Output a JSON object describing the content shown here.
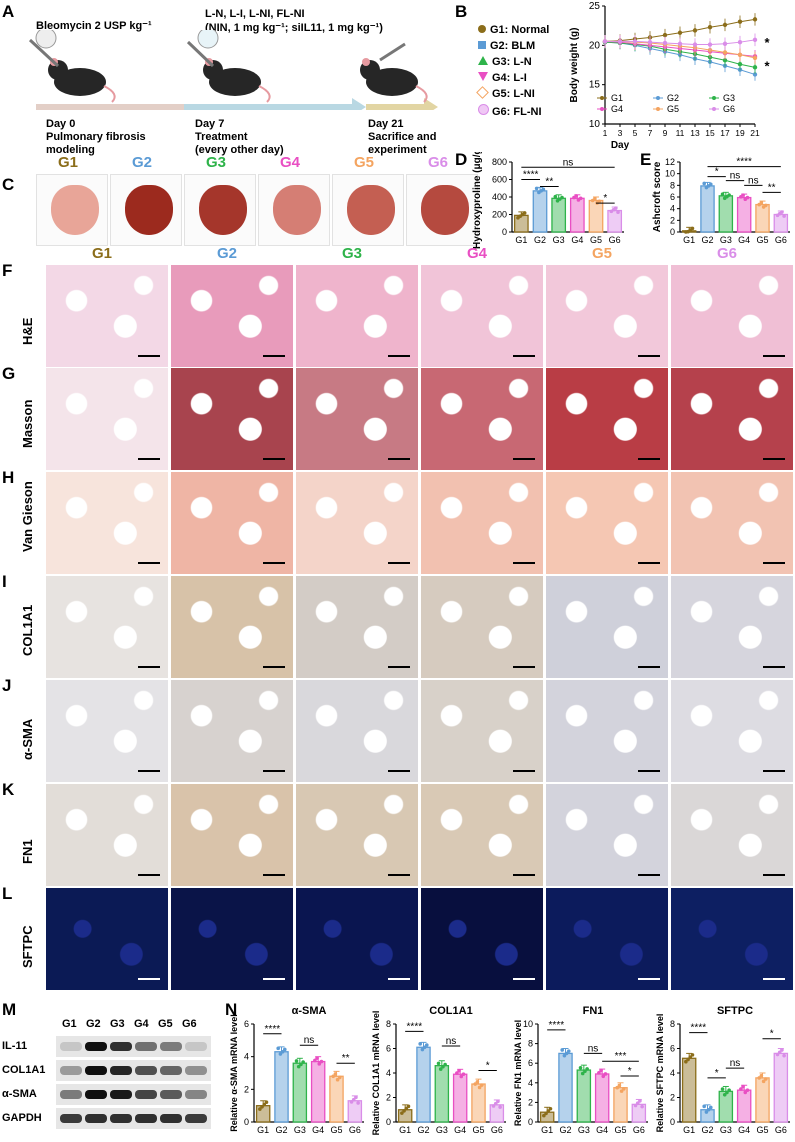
{
  "panels": {
    "A": "A",
    "B": "B",
    "C": "C",
    "D": "D",
    "E": "E",
    "F": "F",
    "G": "G",
    "H": "H",
    "I": "I",
    "J": "J",
    "K": "K",
    "L": "L",
    "M": "M",
    "N": "N"
  },
  "groups": [
    {
      "id": "G1",
      "color": "#8b6d1a"
    },
    {
      "id": "G2",
      "color": "#5b9bd5"
    },
    {
      "id": "G3",
      "color": "#2eb34a"
    },
    {
      "id": "G4",
      "color": "#e94fc3"
    },
    {
      "id": "G5",
      "color": "#f4a460"
    },
    {
      "id": "G6",
      "color": "#d98de8"
    }
  ],
  "schematic": {
    "bleomycin": "Bleomycin 2 USP kg⁻¹",
    "treatment_line1": "L-N, L-I, L-NI, FL-NI",
    "treatment_line2": "(NIN, 1 mg kg⁻¹; siIL11, 1 mg kg⁻¹)",
    "day0": "Day 0",
    "day0_desc1": "Pulmonary fibrosis",
    "day0_desc2": "modeling",
    "day7": "Day 7",
    "day7_desc1": "Treatment",
    "day7_desc2": "(every other day)",
    "day21": "Day 21",
    "day21_desc1": "Sacrifice and",
    "day21_desc2": "experiment"
  },
  "legend_B": [
    "G1: Normal",
    "G2: BLM",
    "G3: L-N",
    "G4: L-I",
    "G5: L-NI",
    "G6: FL-NI"
  ],
  "histology_rows": [
    "H&E",
    "Masson",
    "Van Gieson",
    "COL1A1",
    "α-SMA",
    "FN1",
    "SFTPC"
  ],
  "western": {
    "bands": [
      "IL-11",
      "COL1A1",
      "α-SMA",
      "GAPDH"
    ],
    "lanes": [
      "G1",
      "G2",
      "G3",
      "G4",
      "G5",
      "G6"
    ]
  },
  "chart_data": [
    {
      "id": "B",
      "type": "line",
      "title": "",
      "xlabel": "Day",
      "ylabel": "Body weight (g)",
      "x": [
        1,
        3,
        5,
        7,
        9,
        11,
        13,
        15,
        17,
        19,
        21
      ],
      "xticks": [
        "1",
        "3",
        "5",
        "7",
        "9",
        "11",
        "13",
        "15",
        "17",
        "19",
        "21"
      ],
      "ylim": [
        10,
        25
      ],
      "yticks": [
        10,
        15,
        20,
        25
      ],
      "series": [
        {
          "name": "G1",
          "values": [
            20.5,
            20.6,
            20.8,
            21.0,
            21.3,
            21.6,
            21.9,
            22.3,
            22.6,
            23.0,
            23.3
          ]
        },
        {
          "name": "G2",
          "values": [
            20.4,
            20.3,
            20.0,
            19.6,
            19.2,
            18.8,
            18.3,
            17.9,
            17.4,
            16.9,
            16.3
          ]
        },
        {
          "name": "G3",
          "values": [
            20.4,
            20.3,
            20.1,
            19.9,
            19.5,
            19.2,
            18.9,
            18.5,
            18.1,
            17.6,
            17.2
          ]
        },
        {
          "name": "G4",
          "values": [
            20.5,
            20.4,
            20.2,
            20.0,
            19.8,
            19.6,
            19.4,
            19.2,
            19.0,
            18.8,
            18.6
          ]
        },
        {
          "name": "G5",
          "values": [
            20.5,
            20.5,
            20.4,
            20.3,
            20.1,
            19.9,
            19.7,
            19.4,
            19.1,
            18.8,
            18.4
          ]
        },
        {
          "name": "G6",
          "values": [
            20.5,
            20.5,
            20.5,
            20.4,
            20.3,
            20.2,
            20.1,
            20.1,
            20.2,
            20.4,
            20.7
          ]
        }
      ],
      "annotations": [
        "*",
        "*"
      ]
    },
    {
      "id": "D",
      "type": "bar",
      "title": "",
      "xlabel": "",
      "ylabel": "Hydroxyproline (μg/g)",
      "categories": [
        "G1",
        "G2",
        "G3",
        "G4",
        "G5",
        "G6"
      ],
      "values": [
        190,
        470,
        385,
        385,
        360,
        245
      ],
      "ylim": [
        0,
        800
      ],
      "yticks": [
        0,
        200,
        400,
        600,
        800
      ],
      "annotations": [
        "ns",
        "****",
        "**",
        "*"
      ]
    },
    {
      "id": "E",
      "type": "bar",
      "title": "",
      "xlabel": "",
      "ylabel": "Ashcroft score",
      "categories": [
        "G1",
        "G2",
        "G3",
        "G4",
        "G5",
        "G6"
      ],
      "values": [
        0.2,
        7.9,
        6.2,
        5.9,
        4.7,
        3.0
      ],
      "ylim": [
        0,
        12
      ],
      "yticks": [
        0,
        2,
        4,
        6,
        8,
        10,
        12
      ],
      "annotations": [
        "****",
        "*",
        "ns",
        "ns",
        "**"
      ]
    },
    {
      "id": "N1",
      "type": "bar",
      "title": "α-SMA",
      "xlabel": "",
      "ylabel": "Relative α-SMA mRNA level",
      "categories": [
        "G1",
        "G2",
        "G3",
        "G4",
        "G5",
        "G6"
      ],
      "values": [
        1.0,
        4.3,
        3.6,
        3.7,
        2.8,
        1.3
      ],
      "ylim": [
        0,
        6
      ],
      "yticks": [
        0,
        2,
        4,
        6
      ],
      "annotations": [
        "****",
        "ns",
        "**"
      ]
    },
    {
      "id": "N2",
      "type": "bar",
      "title": "COL1A1",
      "xlabel": "",
      "ylabel": "Relative COL1A1 mRNA level",
      "categories": [
        "G1",
        "G2",
        "G3",
        "G4",
        "G5",
        "G6"
      ],
      "values": [
        1.0,
        6.1,
        4.6,
        3.9,
        3.1,
        1.4
      ],
      "ylim": [
        0,
        8
      ],
      "yticks": [
        0,
        2,
        4,
        6,
        8
      ],
      "annotations": [
        "****",
        "ns",
        "*"
      ]
    },
    {
      "id": "N3",
      "type": "bar",
      "title": "FN1",
      "xlabel": "",
      "ylabel": "Relative FN1 mRNA level",
      "categories": [
        "G1",
        "G2",
        "G3",
        "G4",
        "G5",
        "G6"
      ],
      "values": [
        1.0,
        7.0,
        5.3,
        4.9,
        3.5,
        1.8
      ],
      "ylim": [
        0,
        10
      ],
      "yticks": [
        0,
        2,
        4,
        6,
        8,
        10
      ],
      "annotations": [
        "****",
        "ns",
        "***",
        "*"
      ]
    },
    {
      "id": "N4",
      "type": "bar",
      "title": "SFTPC",
      "xlabel": "",
      "ylabel": "Relative SFTPC mRNA level",
      "categories": [
        "G1",
        "G2",
        "G3",
        "G4",
        "G5",
        "G6"
      ],
      "values": [
        5.2,
        1.0,
        2.5,
        2.6,
        3.6,
        5.6
      ],
      "ylim": [
        0,
        8
      ],
      "yticks": [
        0,
        2,
        4,
        6,
        8
      ],
      "annotations": [
        "****",
        "*",
        "ns",
        "*"
      ]
    }
  ]
}
